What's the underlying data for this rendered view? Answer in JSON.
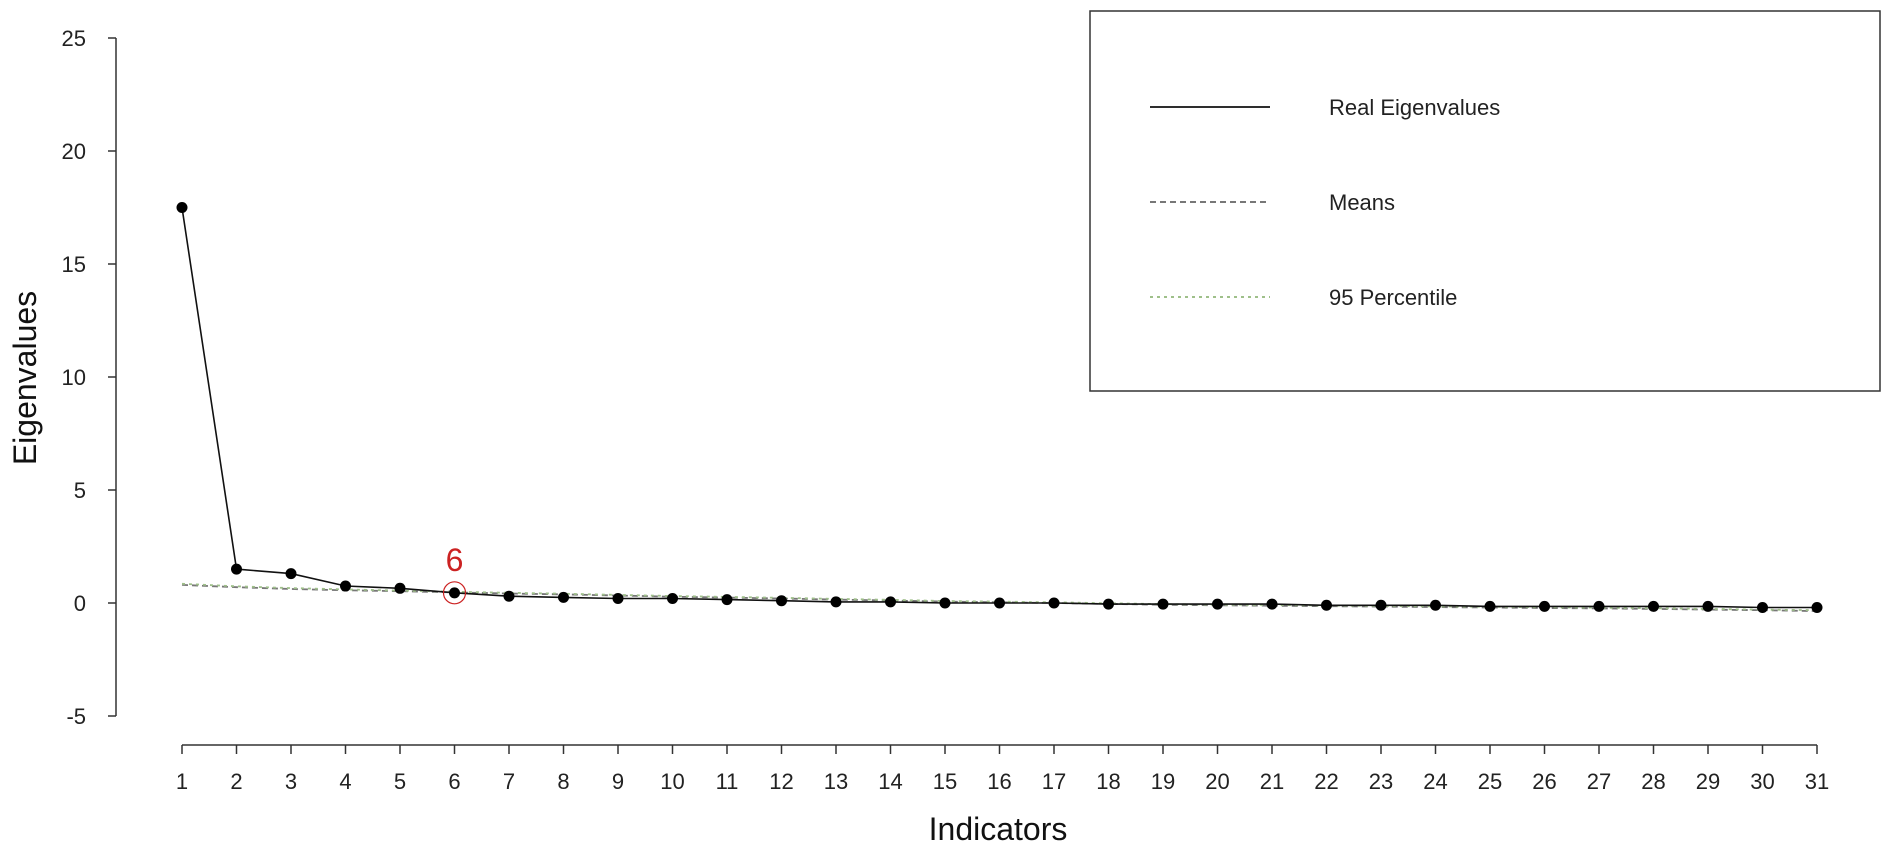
{
  "chart_data": {
    "type": "line",
    "xlabel": "Indicators",
    "ylabel": "Eigenvalues",
    "ylim": [
      -5,
      25
    ],
    "xlim": [
      1,
      31
    ],
    "y_ticks": [
      "25",
      "20",
      "15",
      "10",
      "5",
      "0",
      "-5"
    ],
    "x": [
      1,
      2,
      3,
      4,
      5,
      6,
      7,
      8,
      9,
      10,
      11,
      12,
      13,
      14,
      15,
      16,
      17,
      18,
      19,
      20,
      21,
      22,
      23,
      24,
      25,
      26,
      27,
      28,
      29,
      30,
      31
    ],
    "x_tick_labels": [
      "1",
      "2",
      "3",
      "4",
      "5",
      "6",
      "7",
      "8",
      "9",
      "10",
      "11",
      "12",
      "13",
      "14",
      "15",
      "16",
      "17",
      "18",
      "19",
      "20",
      "21",
      "22",
      "23",
      "24",
      "25",
      "26",
      "27",
      "28",
      "29",
      "30",
      "31"
    ],
    "series": [
      {
        "name": "Real Eigenvalues",
        "style": "solid",
        "color": "#111111",
        "markers": true,
        "values": [
          17.5,
          1.5,
          1.3,
          0.75,
          0.65,
          0.45,
          0.3,
          0.25,
          0.2,
          0.2,
          0.15,
          0.1,
          0.05,
          0.05,
          0.0,
          0.0,
          0.0,
          -0.05,
          -0.05,
          -0.05,
          -0.05,
          -0.1,
          -0.1,
          -0.1,
          -0.15,
          -0.15,
          -0.15,
          -0.15,
          -0.15,
          -0.2,
          -0.2
        ]
      },
      {
        "name": "Means",
        "style": "dashed",
        "color": "#777777",
        "markers": false,
        "values": [
          0.8,
          0.7,
          0.62,
          0.56,
          0.52,
          0.47,
          0.42,
          0.38,
          0.33,
          0.28,
          0.24,
          0.2,
          0.15,
          0.11,
          0.06,
          0.03,
          0.0,
          -0.04,
          -0.08,
          -0.1,
          -0.12,
          -0.14,
          -0.16,
          -0.18,
          -0.2,
          -0.22,
          -0.24,
          -0.26,
          -0.29,
          -0.32,
          -0.36
        ]
      },
      {
        "name": "95 Percentile",
        "style": "dotted",
        "color": "#9fc08a",
        "markers": false,
        "values": [
          0.85,
          0.74,
          0.66,
          0.6,
          0.55,
          0.5,
          0.45,
          0.41,
          0.36,
          0.31,
          0.27,
          0.23,
          0.18,
          0.14,
          0.09,
          0.06,
          0.03,
          -0.01,
          -0.05,
          -0.07,
          -0.09,
          -0.11,
          -0.13,
          -0.15,
          -0.17,
          -0.19,
          -0.21,
          -0.23,
          -0.26,
          -0.29,
          -0.32
        ]
      }
    ],
    "annotation": {
      "x": 6,
      "y": 0.45,
      "label": "6",
      "color": "#cc2222"
    },
    "legend": {
      "position": "top-right",
      "entries": [
        "Real Eigenvalues",
        "Means",
        "95 Percentile"
      ]
    },
    "grid": false
  }
}
